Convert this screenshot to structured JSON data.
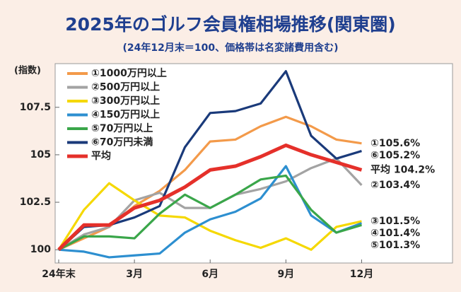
{
  "chart_data": {
    "type": "line",
    "title": "2025年のゴルフ会員権相場推移(関東圏)",
    "subtitle": "(24年12月末＝100、価格帯は名変諸費用含む)",
    "y_label": "(指数)",
    "x": [
      0,
      1,
      2,
      3,
      4,
      5,
      6,
      7,
      8,
      9,
      10,
      11,
      12
    ],
    "xlim": [
      0,
      15.6
    ],
    "xticks": [
      {
        "value": 0,
        "label": "24年末"
      },
      {
        "value": 3,
        "label": "3月"
      },
      {
        "value": 6,
        "label": "6月"
      },
      {
        "value": 9,
        "label": "9月"
      },
      {
        "value": 12,
        "label": "12月"
      }
    ],
    "ylim": [
      99.3,
      109.8
    ],
    "yticks": [
      100,
      102.5,
      105,
      107.5
    ],
    "grid": false,
    "legend": "upper left",
    "series": [
      {
        "name": "①1000万円以上",
        "color": "#f39a4a",
        "values": [
          100,
          100.6,
          101.2,
          102.3,
          103.1,
          104.2,
          105.7,
          105.8,
          106.5,
          107.0,
          106.5,
          105.8,
          105.6
        ],
        "end_label": "①105.6%"
      },
      {
        "name": "②500万円以上",
        "color": "#a3a3a3",
        "values": [
          100,
          100.8,
          101.2,
          102.6,
          103.0,
          102.2,
          102.2,
          102.9,
          103.2,
          103.6,
          104.3,
          104.8,
          103.4
        ],
        "end_label": "②103.4%"
      },
      {
        "name": "③300万円以上",
        "color": "#f5d800",
        "values": [
          100,
          102.1,
          103.5,
          102.6,
          101.8,
          101.7,
          101.0,
          100.5,
          100.1,
          100.6,
          100.0,
          101.2,
          101.5
        ],
        "end_label": "③101.5%"
      },
      {
        "name": "④150万円以上",
        "color": "#2d8fd0",
        "values": [
          100,
          99.9,
          99.6,
          99.7,
          99.8,
          100.9,
          101.6,
          102.0,
          102.7,
          104.4,
          101.8,
          100.9,
          101.4
        ],
        "end_label": "④101.4%"
      },
      {
        "name": "⑤70万円以上",
        "color": "#3aa64a",
        "values": [
          100,
          100.7,
          100.7,
          100.6,
          101.9,
          102.9,
          102.2,
          102.9,
          103.7,
          103.9,
          102.1,
          100.9,
          101.3
        ],
        "end_label": "⑤101.3%"
      },
      {
        "name": "⑥70万円未満",
        "color": "#1a3a7a",
        "values": [
          100,
          101.2,
          101.3,
          101.7,
          102.3,
          105.4,
          107.2,
          107.3,
          107.7,
          109.4,
          106.0,
          104.8,
          105.2
        ],
        "end_label": "⑥105.2%"
      },
      {
        "name": "平均",
        "color": "#e5302a",
        "values": [
          100,
          101.3,
          101.3,
          102.2,
          102.6,
          103.3,
          104.2,
          104.4,
          104.9,
          105.5,
          105.0,
          104.6,
          104.2
        ],
        "end_label": "平均 104.2%"
      }
    ]
  }
}
